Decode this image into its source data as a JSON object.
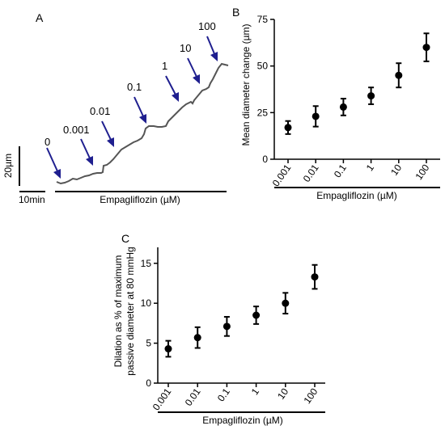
{
  "colors": {
    "trace": "#555555",
    "arrow": "#1f1f8f",
    "marker": "#000000",
    "axis": "#000000"
  },
  "panel_a": {
    "label": "A",
    "xlabel": "Empagliflozin (µM)",
    "scale_y_label": "20µm",
    "scale_x_label": "10min",
    "arrow_labels": [
      "0",
      "0.001",
      "0.01",
      "0.1",
      "1",
      "10",
      "100"
    ]
  },
  "chart_data": [
    {
      "panel": "B",
      "type": "scatter",
      "categories": [
        "0.001",
        "0.01",
        "0.1",
        "1",
        "10",
        "100"
      ],
      "values": [
        17,
        23,
        28,
        34,
        45,
        60
      ],
      "error": [
        3.5,
        5.5,
        4.5,
        4.5,
        6.5,
        7.5
      ],
      "ylabel": "Mean diameter change (µm)",
      "xlabel": "Empagliflozin (µM)",
      "ylim": [
        0,
        75
      ],
      "yticks": [
        "0",
        "25",
        "50",
        "75"
      ],
      "grid": false
    },
    {
      "panel": "C",
      "type": "scatter",
      "categories": [
        "0.001",
        "0.01",
        "0.1",
        "1",
        "10",
        "100"
      ],
      "values": [
        4.3,
        5.7,
        7.1,
        8.5,
        10.0,
        13.3
      ],
      "error": [
        1.0,
        1.3,
        1.2,
        1.1,
        1.3,
        1.5
      ],
      "ylabel_lines": [
        "Dilation as % of maximum",
        "passive diameter at 80 mmHg"
      ],
      "xlabel": "Empagliflozin (µM)",
      "ylim": [
        0,
        17
      ],
      "yticks": [
        "0",
        "5",
        "10",
        "15"
      ],
      "grid": false
    }
  ]
}
